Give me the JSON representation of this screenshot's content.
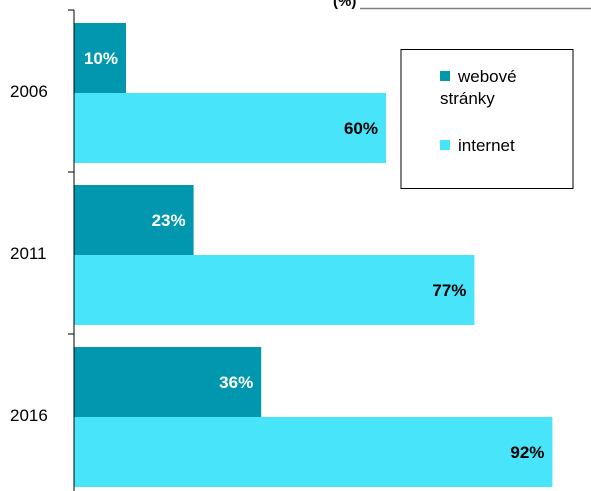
{
  "chart_data": {
    "type": "bar",
    "orientation": "horizontal",
    "title": "(%)",
    "categories": [
      "2006",
      "2011",
      "2016"
    ],
    "series": [
      {
        "name": "webové stránky",
        "values": [
          10,
          23,
          36
        ],
        "labels": [
          "10%",
          "23%",
          "36%"
        ],
        "color": "#0197AE",
        "label_color": "#ffffff"
      },
      {
        "name": "internet",
        "values": [
          60,
          77,
          92
        ],
        "labels": [
          "60%",
          "77%",
          "92%"
        ],
        "color": "#47E4FA",
        "label_color": "#000000"
      }
    ],
    "xlim": [
      0,
      100
    ],
    "grid": false,
    "legend_position": "top-right"
  }
}
